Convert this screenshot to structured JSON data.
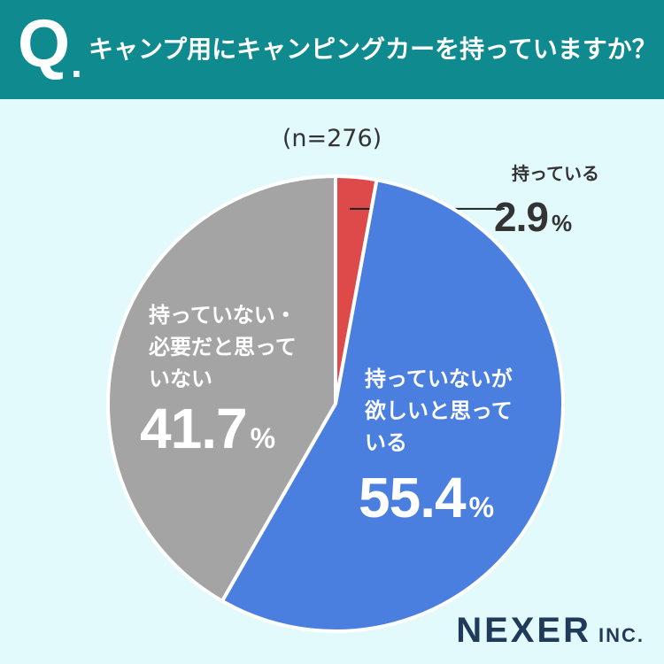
{
  "header": {
    "q_mark": "Q",
    "q_dot": ".",
    "question": "キャンプ用にキャンピングカーを持っていますか？"
  },
  "sample_size": "(n=276)",
  "chart_data": {
    "type": "pie",
    "start_angle_deg": 0,
    "direction": "clockwise",
    "slices": [
      {
        "label": "持っている",
        "value": 2.9,
        "unit": "%",
        "color": "#de4a4a"
      },
      {
        "label": "持っていないが欲しいと思っている",
        "value": 55.4,
        "unit": "%",
        "color": "#4a7fe0"
      },
      {
        "label": "持っていない・必要だと思っていない",
        "value": 41.7,
        "unit": "%",
        "color": "#a4a4a4"
      }
    ]
  },
  "labels": {
    "have": {
      "lines": [
        "持っている"
      ],
      "value": "2.9",
      "unit": "%"
    },
    "want": {
      "lines": [
        "持っていないが",
        "欲しいと思って",
        "いる"
      ],
      "value": "55.4",
      "unit": "%"
    },
    "no_want": {
      "lines": [
        "持っていない・",
        "必要だと思って",
        "いない"
      ],
      "value": "41.7",
      "unit": "%"
    }
  },
  "logo": {
    "main": "NEXER",
    "suffix": "INC."
  },
  "colors": {
    "header_bg": "#0f8a8e",
    "page_bg": "#e3fafc",
    "leader_line": "#222222"
  }
}
